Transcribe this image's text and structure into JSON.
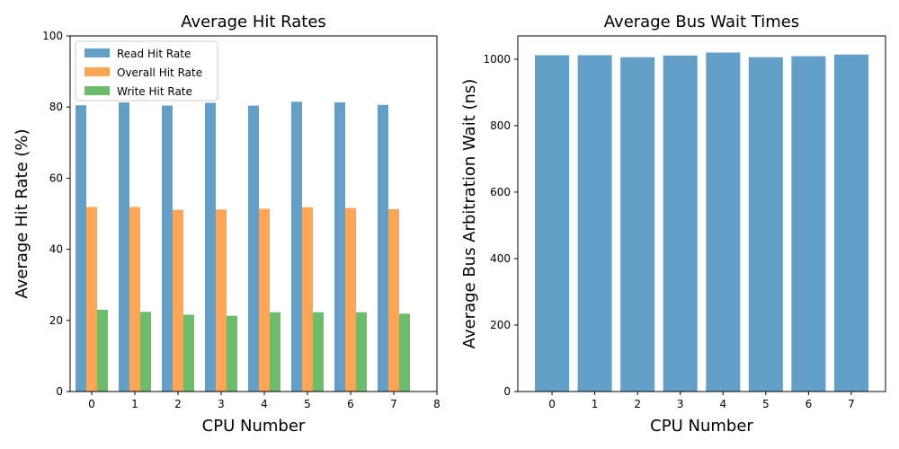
{
  "chart_data": [
    {
      "type": "bar",
      "title": "Average Hit Rates",
      "xlabel": "CPU Number",
      "ylabel": "Average Hit Rate (%)",
      "ylim": [
        0,
        100
      ],
      "xlim": [
        -0.5,
        8
      ],
      "yticks": [
        0,
        20,
        40,
        60,
        80,
        100
      ],
      "xticks": [
        0,
        1,
        2,
        3,
        4,
        5,
        6,
        7,
        8
      ],
      "categories": [
        0,
        1,
        2,
        3,
        4,
        5,
        6,
        7
      ],
      "legend_position": "upper-left",
      "grid": false,
      "series": [
        {
          "name": "Read Hit Rate",
          "color": "#1f77b4",
          "values": [
            80.5,
            81.3,
            80.4,
            81.2,
            80.4,
            81.5,
            81.3,
            80.6
          ]
        },
        {
          "name": "Overall Hit Rate",
          "color": "#ff7f0e",
          "values": [
            51.9,
            51.9,
            51.1,
            51.2,
            51.4,
            51.8,
            51.6,
            51.3
          ]
        },
        {
          "name": "Write Hit Rate",
          "color": "#2ca02c",
          "values": [
            23.0,
            22.4,
            21.6,
            21.3,
            22.3,
            22.3,
            22.3,
            21.9
          ]
        }
      ]
    },
    {
      "type": "bar",
      "title": "Average Bus Wait Times",
      "xlabel": "CPU Number",
      "ylabel": "Average Bus Arbitration Wait (ns)",
      "ylim": [
        0,
        1070
      ],
      "xlim": [
        -0.8,
        7.8
      ],
      "yticks": [
        0,
        200,
        400,
        600,
        800,
        1000
      ],
      "xticks": [
        0,
        1,
        2,
        3,
        4,
        5,
        6,
        7
      ],
      "categories": [
        0,
        1,
        2,
        3,
        4,
        5,
        6,
        7
      ],
      "grid": false,
      "series": [
        {
          "color": "#1f77b4",
          "values": [
            1012,
            1012,
            1006,
            1011,
            1020,
            1006,
            1009,
            1014
          ]
        }
      ]
    }
  ]
}
